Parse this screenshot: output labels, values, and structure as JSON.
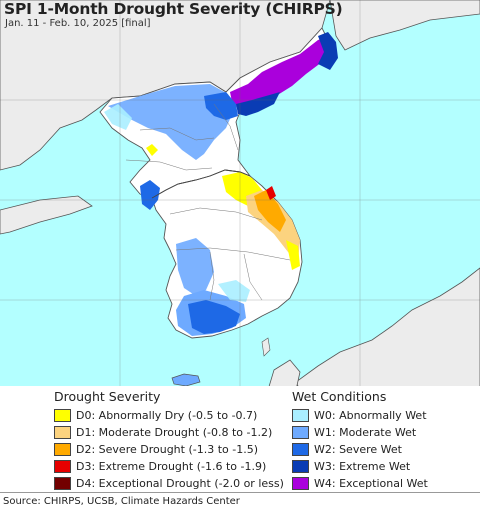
{
  "map": {
    "title": "SPI 1-Month Drought Severity (CHIRPS)",
    "subtitle": "Jan. 11 - Feb. 10, 2025 [final]",
    "colors": {
      "sea": "#b3ffff",
      "land_neighbor": "#ececec",
      "land_normal": "#ffffff",
      "border": "#555555"
    }
  },
  "legend": {
    "drought": {
      "heading": "Drought Severity",
      "items": [
        {
          "label": "D0: Abnormally Dry (-0.5 to -0.7)",
          "color": "#ffff00"
        },
        {
          "label": "D1: Moderate Drought (-0.8 to -1.2)",
          "color": "#fcd37f"
        },
        {
          "label": "D2: Severe Drought (-1.3 to -1.5)",
          "color": "#ffaa00"
        },
        {
          "label": "D3: Extreme Drought (-1.6 to -1.9)",
          "color": "#e60000"
        },
        {
          "label": "D4: Exceptional Drought (-2.0 or less)",
          "color": "#730000"
        }
      ]
    },
    "wet": {
      "heading": "Wet Conditions",
      "items": [
        {
          "label": "W0: Abnormally Wet",
          "color": "#aaeeff"
        },
        {
          "label": "W1: Moderate Wet",
          "color": "#6eaaff"
        },
        {
          "label": "W2: Severe Wet",
          "color": "#1e69e6"
        },
        {
          "label": "W3: Extreme Wet",
          "color": "#0a3cb4"
        },
        {
          "label": "W4: Exceptional Wet",
          "color": "#aa00dc"
        }
      ]
    }
  },
  "footer": {
    "source": "Source: CHIRPS, UCSB, Climate Hazards Center"
  }
}
